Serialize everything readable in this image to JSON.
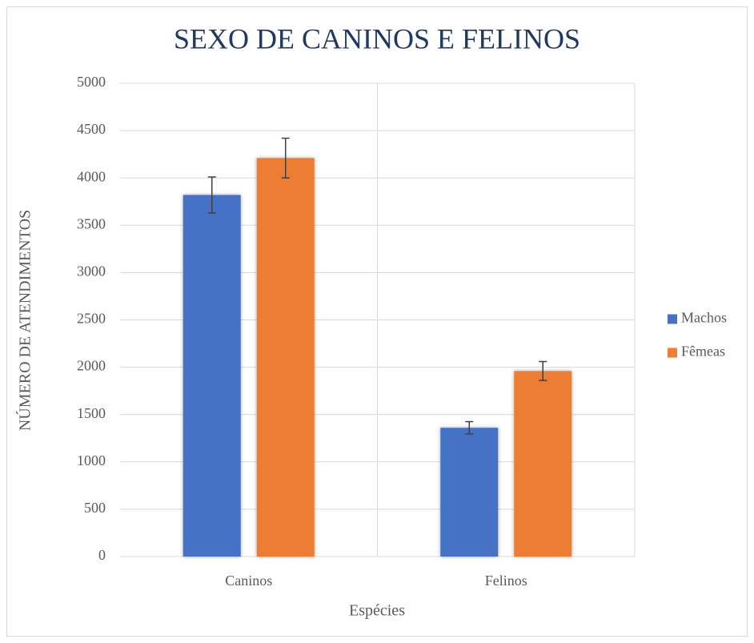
{
  "chart_data": {
    "type": "bar",
    "title": "SEXO DE CANINOS E FELINOS",
    "x_label": "Espécies",
    "y_label": "NÚMERO DE ATENDIMENTOS",
    "categories": [
      "Caninos",
      "Felinos"
    ],
    "series": [
      {
        "name": "Machos",
        "color": "#4472c4",
        "values": [
          3820,
          1360
        ],
        "errors": [
          190,
          65
        ]
      },
      {
        "name": "Fêmeas",
        "color": "#ed7d31",
        "values": [
          4210,
          1960
        ],
        "errors": [
          210,
          100
        ]
      }
    ],
    "ylim": [
      0,
      5000
    ],
    "yticks": [
      0,
      500,
      1000,
      1500,
      2000,
      2500,
      3000,
      3500,
      4000,
      4500,
      5000
    ],
    "grid": true,
    "legend": "right"
  }
}
